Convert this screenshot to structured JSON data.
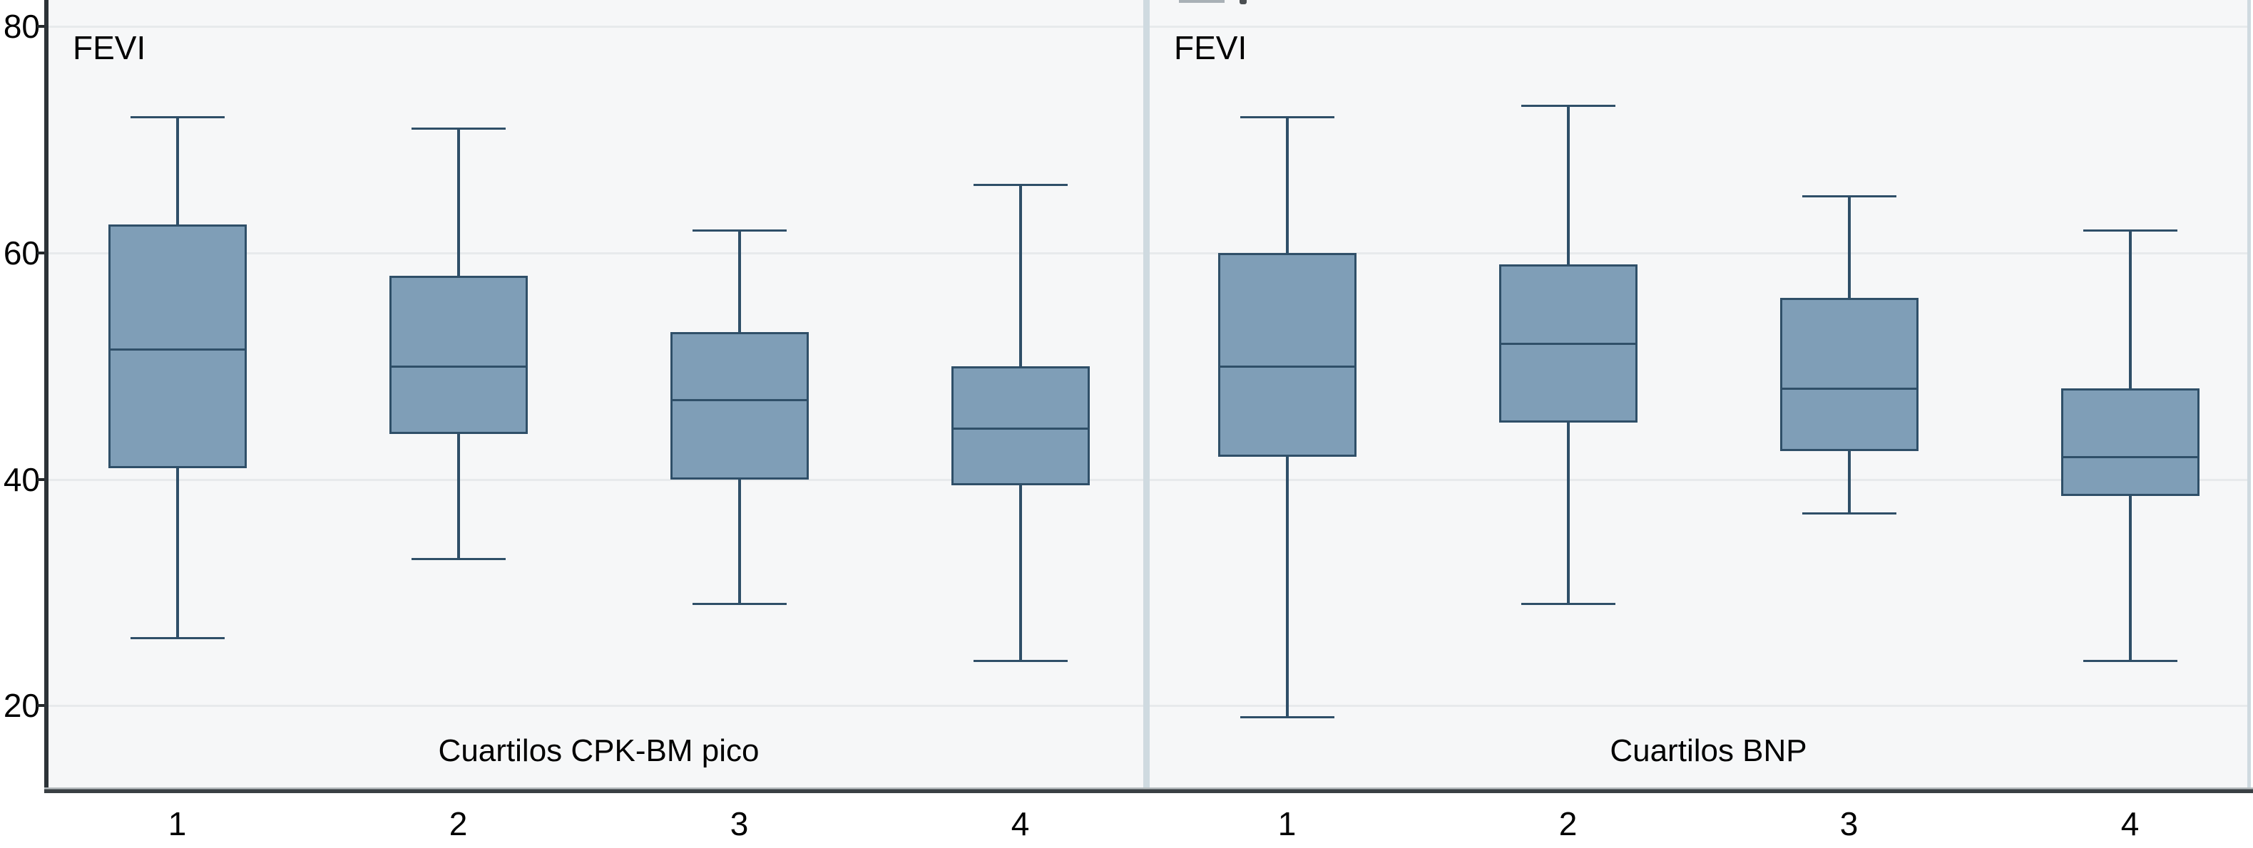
{
  "figure": {
    "y_axis": {
      "tick_labels": [
        "80",
        "60",
        "40",
        "20"
      ],
      "tick_values": [
        80,
        60,
        40,
        20
      ]
    },
    "colors": {
      "box_fill": "#7f9eb7",
      "box_border": "#2f4f68",
      "gridline": "#e7eaec",
      "panel_background": "#f6f7f8",
      "panel_divider": "#cfdae0",
      "axis_line": "#2d3338",
      "text": "#000000"
    }
  },
  "chart_data": [
    {
      "type": "box",
      "inner_label": "FEVI",
      "xlabel": "Cuartilos CPK-BM pico",
      "ylabel": "FEVI",
      "ylim": [
        12.5,
        82.5
      ],
      "grid": "horizontal",
      "categories": [
        "1",
        "2",
        "3",
        "4"
      ],
      "series": [
        {
          "category": "1",
          "min": 26,
          "q1": 41,
          "median": 51.5,
          "q3": 62.5,
          "max": 72
        },
        {
          "category": "2",
          "min": 33,
          "q1": 44,
          "median": 50,
          "q3": 58,
          "max": 71
        },
        {
          "category": "3",
          "min": 29,
          "q1": 40,
          "median": 47,
          "q3": 53,
          "max": 62
        },
        {
          "category": "4",
          "min": 24,
          "q1": 39.5,
          "median": 44.5,
          "q3": 50,
          "max": 66
        }
      ]
    },
    {
      "type": "box",
      "inner_label": "FEVI",
      "xlabel": "Cuartilos BNP",
      "ylabel": "FEVI",
      "ylim": [
        12.5,
        82.5
      ],
      "grid": "horizontal",
      "categories": [
        "1",
        "2",
        "3",
        "4"
      ],
      "series": [
        {
          "category": "1",
          "min": 19,
          "q1": 42,
          "median": 50,
          "q3": 60,
          "max": 72
        },
        {
          "category": "2",
          "min": 29,
          "q1": 45,
          "median": 52,
          "q3": 59,
          "max": 73
        },
        {
          "category": "3",
          "min": 37,
          "q1": 42.5,
          "median": 48,
          "q3": 56,
          "max": 65
        },
        {
          "category": "4",
          "min": 24,
          "q1": 38.5,
          "median": 42,
          "q3": 48,
          "max": 62
        }
      ]
    }
  ]
}
